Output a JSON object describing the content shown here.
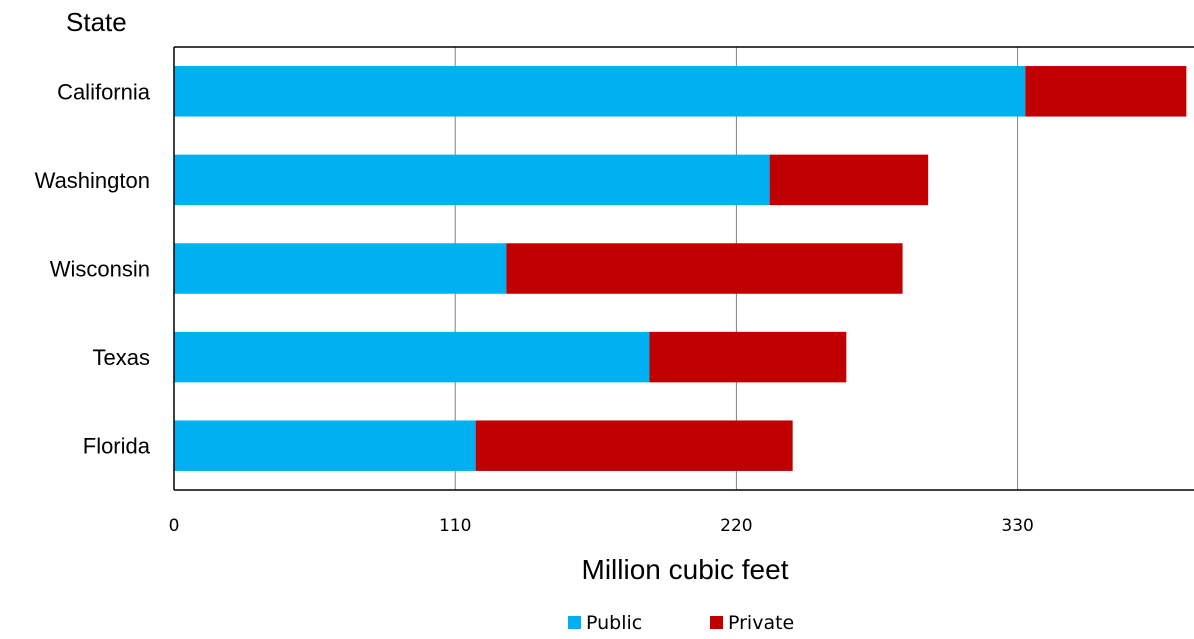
{
  "chart_data": {
    "type": "bar",
    "orientation": "horizontal",
    "stacked": true,
    "ylabel": "State",
    "xlabel": "Million cubic feet",
    "categories": [
      "California",
      "Washington",
      "Wisconsin",
      "Texas",
      "Florida"
    ],
    "series": [
      {
        "name": "Public",
        "color": "#00b0f0",
        "values": [
          333,
          233,
          130,
          186,
          118
        ]
      },
      {
        "name": "Private",
        "color": "#c00000",
        "values": [
          63,
          62,
          155,
          77,
          124
        ]
      }
    ],
    "xlim": [
      0,
      399
    ],
    "xticks": [
      "0",
      "110",
      "220",
      "330"
    ],
    "tick_values": [
      0,
      110,
      220,
      330
    ],
    "grid": "vertical",
    "legend": "bottom"
  }
}
